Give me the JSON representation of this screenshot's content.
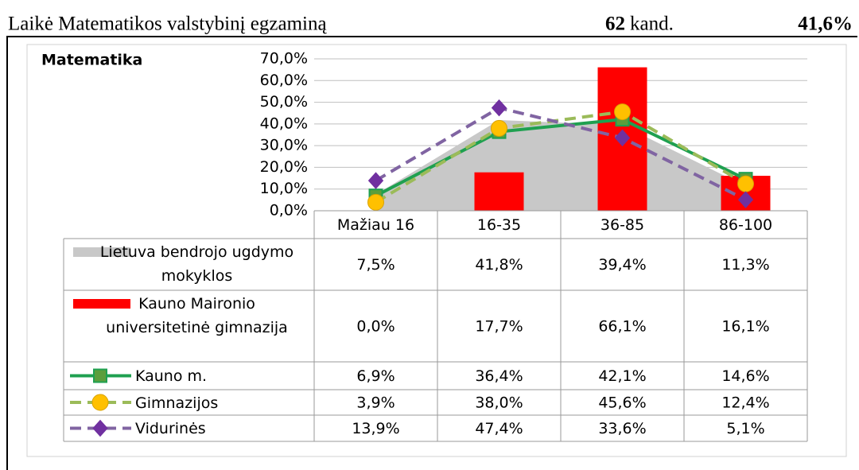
{
  "header": {
    "text": "Laikė Matematikos valstybinį egzaminą",
    "count": "62",
    "count_unit": "kand.",
    "share": "41,6%"
  },
  "chart_data": {
    "type": "bar",
    "title": "Matematika",
    "categories": [
      "Mažiau 16",
      "16-35",
      "36-85",
      "86-100"
    ],
    "ylim": [
      0,
      70
    ],
    "yticks": [
      {
        "value": 0,
        "label": "0,0%"
      },
      {
        "value": 10,
        "label": "10,0%"
      },
      {
        "value": 20,
        "label": "20,0%"
      },
      {
        "value": 30,
        "label": "30,0%"
      },
      {
        "value": 40,
        "label": "40,0%"
      },
      {
        "value": 50,
        "label": "50,0%"
      },
      {
        "value": 60,
        "label": "60,0%"
      },
      {
        "value": 70,
        "label": "70,0%"
      }
    ],
    "grid": true,
    "series": [
      {
        "name": "Lietuva bendrojo ugdymo mokyklos",
        "type": "area",
        "color": "#c8c8c8",
        "values": [
          7.5,
          41.8,
          39.4,
          11.3
        ],
        "value_labels": [
          "7,5%",
          "41,8%",
          "39,4%",
          "11,3%"
        ]
      },
      {
        "name": "Kauno Maironio universitetinė gimnazija",
        "type": "bar",
        "color": "#ff0000",
        "values": [
          0.0,
          17.7,
          66.1,
          16.1
        ],
        "value_labels": [
          "0,0%",
          "17,7%",
          "66,1%",
          "16,1%"
        ]
      },
      {
        "name": "Kauno m.",
        "type": "line",
        "color": "#1fa050",
        "marker": "square",
        "marker_color": "#5c9e3c",
        "dashed": false,
        "values": [
          6.9,
          36.4,
          42.1,
          14.6
        ],
        "value_labels": [
          "6,9%",
          "36,4%",
          "42,1%",
          "14,6%"
        ]
      },
      {
        "name": "Gimnazijos",
        "type": "line",
        "color": "#9bbb59",
        "marker": "circle",
        "marker_color": "#ffc000",
        "dashed": true,
        "values": [
          3.9,
          38.0,
          45.6,
          12.4
        ],
        "value_labels": [
          "3,9%",
          "38,0%",
          "45,6%",
          "12,4%"
        ]
      },
      {
        "name": "Vidurinės",
        "type": "line",
        "color": "#8064a2",
        "marker": "diamond",
        "marker_color": "#7030a0",
        "dashed": true,
        "values": [
          13.9,
          47.4,
          33.6,
          5.1
        ],
        "value_labels": [
          "13,9%",
          "47,4%",
          "33,6%",
          "5,1%"
        ]
      }
    ]
  }
}
